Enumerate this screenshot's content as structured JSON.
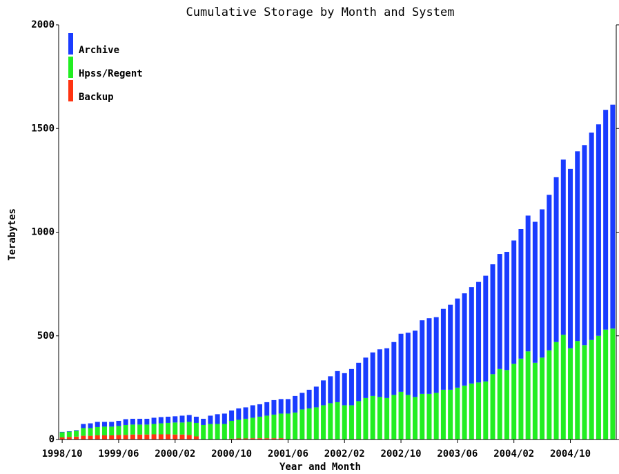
{
  "chart_data": {
    "type": "stacked_bar",
    "title": "Cumulative Storage by Month and System",
    "x_label": "Year and Month",
    "y_label": "Terabytes",
    "categories": [
      "1998/10",
      null,
      null,
      null,
      null,
      null,
      null,
      null,
      "1999/06",
      null,
      null,
      null,
      null,
      null,
      null,
      null,
      "2000/02",
      null,
      null,
      null,
      null,
      null,
      null,
      null,
      "2000/10",
      null,
      null,
      null,
      null,
      null,
      null,
      null,
      "2001/06",
      null,
      null,
      null,
      null,
      null,
      null,
      null,
      "2002/02",
      null,
      null,
      null,
      null,
      null,
      null,
      null,
      "2002/10",
      null,
      null,
      null,
      null,
      null,
      null,
      null,
      "2003/06",
      null,
      null,
      null,
      null,
      null,
      null,
      null,
      "2004/02",
      null,
      null,
      null,
      null,
      null,
      null,
      null,
      "2004/10",
      null,
      null,
      null,
      null,
      null,
      null
    ],
    "series": [
      {
        "name": "Backup",
        "color": "#ff3311",
        "values": [
          10,
          12,
          14,
          18,
          18,
          20,
          20,
          20,
          22,
          22,
          24,
          24,
          24,
          25,
          25,
          25,
          24,
          24,
          22,
          15,
          0,
          0,
          0,
          0,
          4,
          5,
          5,
          6,
          6,
          6,
          6,
          6,
          0,
          0,
          0,
          0,
          0,
          0,
          0,
          0,
          0,
          0,
          0,
          0,
          0,
          0,
          0,
          0,
          0,
          0,
          0,
          0,
          0,
          0,
          0,
          0,
          0,
          0,
          0,
          0,
          0,
          0,
          0,
          0,
          0,
          0,
          0,
          0,
          0,
          0,
          0,
          0,
          0,
          0,
          0,
          0,
          0,
          0,
          0
        ]
      },
      {
        "name": "Hpss/Regent",
        "color": "#22ee22",
        "values": [
          25,
          26,
          28,
          37,
          37,
          40,
          42,
          42,
          43,
          48,
          48,
          48,
          48,
          50,
          53,
          55,
          58,
          58,
          63,
          65,
          70,
          75,
          75,
          75,
          86,
          90,
          95,
          99,
          104,
          109,
          114,
          119,
          125,
          130,
          145,
          150,
          155,
          165,
          175,
          180,
          165,
          165,
          185,
          200,
          210,
          205,
          200,
          215,
          230,
          215,
          205,
          220,
          220,
          225,
          240,
          240,
          250,
          260,
          270,
          275,
          280,
          315,
          340,
          335,
          365,
          390,
          425,
          370,
          395,
          430,
          470,
          505,
          440,
          475,
          455,
          480,
          500,
          530,
          535
        ]
      },
      {
        "name": "Archive",
        "color": "#1a3cff",
        "values": [
          2,
          2,
          3,
          20,
          23,
          25,
          23,
          23,
          25,
          28,
          28,
          28,
          28,
          30,
          30,
          30,
          30,
          33,
          33,
          30,
          30,
          40,
          47,
          50,
          50,
          55,
          55,
          60,
          60,
          65,
          70,
          70,
          70,
          80,
          80,
          90,
          100,
          120,
          130,
          150,
          155,
          175,
          185,
          195,
          210,
          230,
          240,
          255,
          280,
          300,
          320,
          355,
          365,
          365,
          390,
          410,
          430,
          445,
          465,
          485,
          510,
          530,
          555,
          570,
          595,
          625,
          655,
          680,
          715,
          750,
          795,
          845,
          865,
          915,
          965,
          1000,
          1020,
          1060,
          1080
        ]
      }
    ],
    "ylim": [
      0,
      2000
    ],
    "yticks": [
      0,
      500,
      1000,
      1500,
      2000
    ],
    "legend": "upper left"
  }
}
